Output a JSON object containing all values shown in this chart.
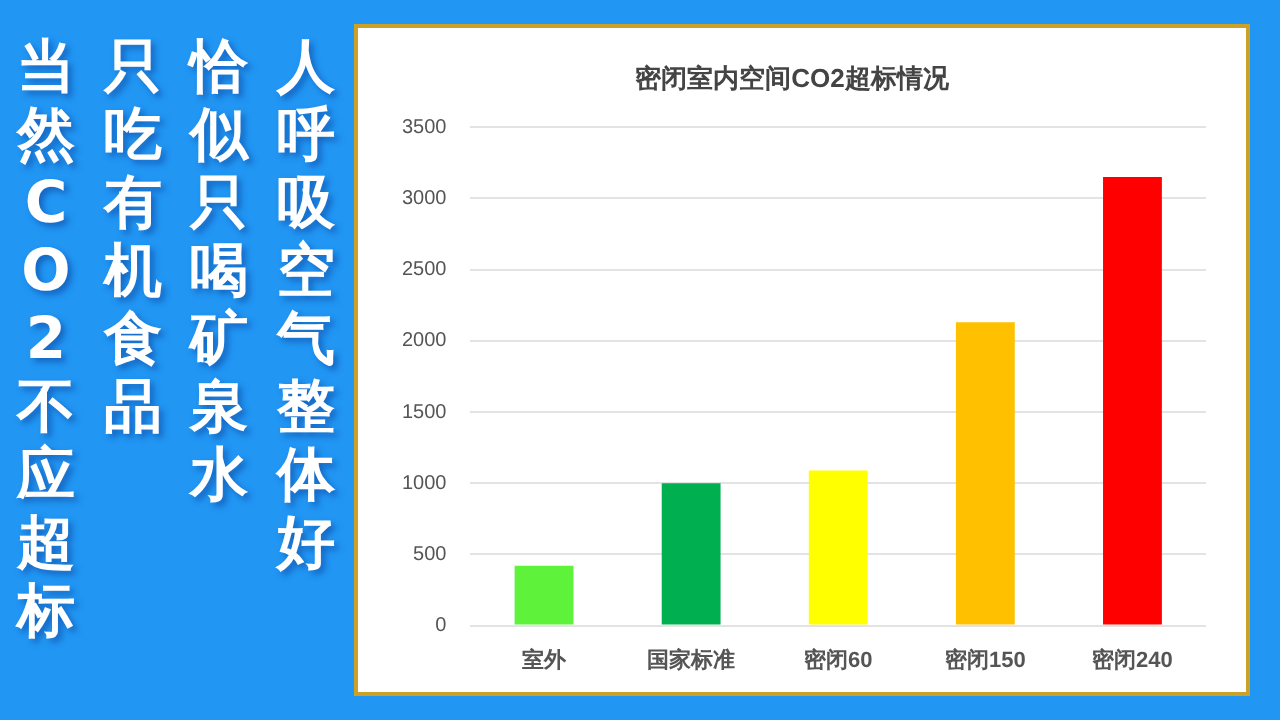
{
  "chart_data": {
    "type": "bar",
    "title": "密闭室内空间CO2超标情况",
    "categories": [
      "室外",
      "国家标准",
      "密闭60",
      "密闭150",
      "密闭240"
    ],
    "values": [
      420,
      1000,
      1090,
      2130,
      3150
    ],
    "colors": [
      "#5ef23a",
      "#00b050",
      "#ffff00",
      "#ffc000",
      "#ff0000"
    ],
    "ylim": [
      0,
      3500
    ],
    "yticks": [
      0,
      500,
      1000,
      1500,
      2000,
      2500,
      3000,
      3500
    ],
    "grid": "y",
    "legend": false,
    "annotations": [
      "人呼吸空气整体好",
      "恰似只喝矿泉水",
      "只吃有机食品",
      "当然CO2不应超标"
    ]
  }
}
